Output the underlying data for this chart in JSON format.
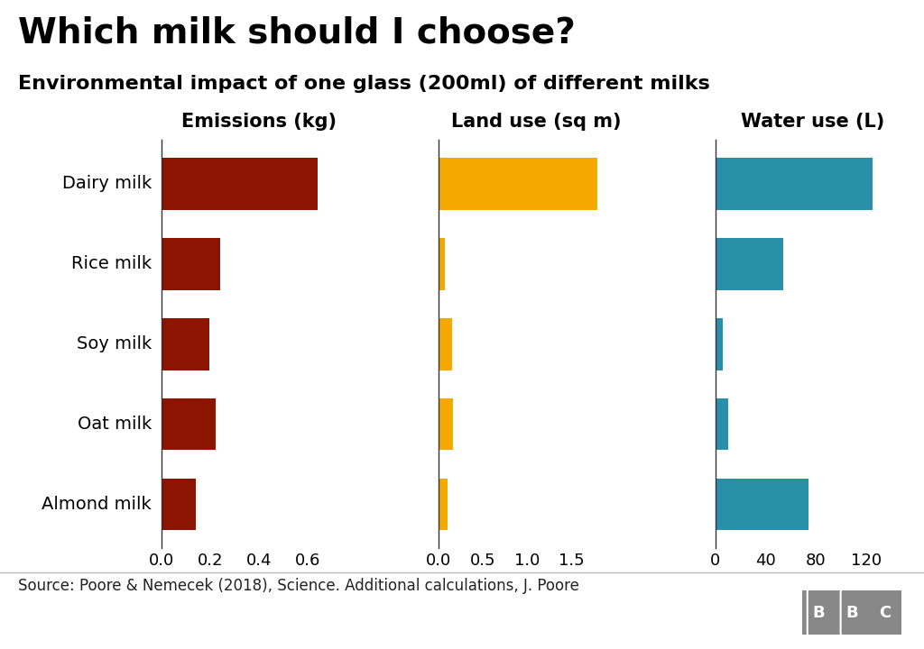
{
  "title": "Which milk should I choose?",
  "subtitle": "Environmental impact of one glass (200ml) of different milks",
  "source": "Source: Poore & Nemecek (2018), Science. Additional calculations, J. Poore",
  "milks": [
    "Dairy milk",
    "Rice milk",
    "Soy milk",
    "Oat milk",
    "Almond milk"
  ],
  "emissions": {
    "label": "Emissions (kg)",
    "values": [
      0.64,
      0.24,
      0.195,
      0.22,
      0.14
    ],
    "color": "#8B1500",
    "xlim": [
      0,
      0.8
    ],
    "xticks": [
      0.0,
      0.2,
      0.4,
      0.6
    ],
    "xticklabels": [
      "0.0",
      "0.2",
      "0.4",
      "0.6"
    ]
  },
  "land_use": {
    "label": "Land use (sq m)",
    "values": [
      1.79,
      0.07,
      0.155,
      0.16,
      0.1
    ],
    "color": "#F5A800",
    "xlim": [
      0,
      2.2
    ],
    "xticks": [
      0.0,
      0.5,
      1.0,
      1.5
    ],
    "xticklabels": [
      "0.0",
      "0.5",
      "1.0",
      "1.5"
    ]
  },
  "water_use": {
    "label": "Water use (L)",
    "values": [
      125,
      54,
      6,
      10,
      74
    ],
    "color": "#2A8FA8",
    "xlim": [
      0,
      155
    ],
    "xticks": [
      0,
      40,
      80,
      120
    ],
    "xticklabels": [
      "0",
      "40",
      "80",
      "120"
    ]
  },
  "background_color": "#FFFFFF",
  "bar_height": 0.65,
  "title_fontsize": 28,
  "subtitle_fontsize": 16,
  "axis_label_fontsize": 15,
  "tick_fontsize": 13,
  "source_fontsize": 12,
  "milk_label_fontsize": 14
}
